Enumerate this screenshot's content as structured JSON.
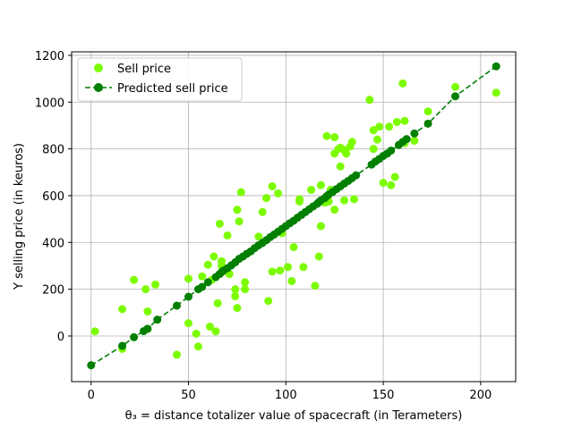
{
  "chart_data": {
    "type": "scatter",
    "xlabel": "θ₃ = distance totalizer value of spacecraft (in Terameters)",
    "ylabel": "Y selling price (in keuros)",
    "xlim": [
      -10,
      218
    ],
    "ylim": [
      -195,
      1215
    ],
    "xticks": [
      0,
      50,
      100,
      150,
      200
    ],
    "yticks": [
      0,
      200,
      400,
      600,
      800,
      1000,
      1200
    ],
    "grid": true,
    "legend_position": "top-left",
    "colors": {
      "sell": "#7cfc00",
      "predicted": "#007f00"
    },
    "series": [
      {
        "name": "Sell price",
        "style": "markers",
        "x": [
          2,
          16,
          16,
          22,
          28,
          29,
          29,
          33,
          44,
          50,
          50,
          54,
          55,
          57,
          60,
          61,
          62,
          63,
          64,
          65,
          66,
          67,
          67,
          68,
          70,
          71,
          74,
          74,
          75,
          75,
          76,
          77,
          79,
          79,
          86,
          88,
          90,
          91,
          93,
          93,
          96,
          97,
          98,
          101,
          103,
          104,
          107,
          107,
          109,
          113,
          115,
          117,
          118,
          118,
          120,
          121,
          122,
          123,
          125,
          125,
          125,
          127,
          128,
          128,
          130,
          130,
          131,
          133,
          134,
          135,
          143,
          145,
          145,
          147,
          148,
          150,
          153,
          154,
          156,
          157,
          160,
          161,
          161,
          166,
          173,
          187,
          208
        ],
        "y": [
          20,
          115,
          -55,
          240,
          200,
          105,
          30,
          220,
          -80,
          245,
          55,
          10,
          -45,
          255,
          305,
          40,
          240,
          340,
          20,
          140,
          480,
          320,
          300,
          280,
          430,
          265,
          200,
          170,
          120,
          540,
          490,
          615,
          230,
          200,
          425,
          530,
          590,
          150,
          640,
          275,
          610,
          280,
          440,
          295,
          235,
          380,
          585,
          575,
          295,
          625,
          215,
          340,
          470,
          645,
          570,
          855,
          575,
          625,
          850,
          780,
          540,
          800,
          805,
          725,
          580,
          795,
          780,
          810,
          830,
          585,
          1010,
          880,
          800,
          840,
          895,
          655,
          895,
          645,
          680,
          915,
          1080,
          825,
          920,
          835,
          960,
          1065,
          1040
        ]
      },
      {
        "name": "Predicted sell price",
        "style": "dashed-line-markers",
        "x": [
          0,
          16,
          22,
          27,
          29,
          34,
          44,
          50,
          55,
          57,
          60,
          64,
          66,
          67,
          68,
          70,
          72,
          74,
          76,
          78,
          80,
          82,
          84,
          86,
          88,
          90,
          92,
          94,
          96,
          98,
          100,
          102,
          104,
          106,
          108,
          110,
          112,
          114,
          116,
          117,
          118,
          120,
          121,
          122,
          124,
          126,
          128,
          130,
          132,
          134,
          136,
          144,
          146,
          148,
          150,
          152,
          154,
          158,
          160,
          162,
          166,
          173,
          187,
          208
        ],
        "y": [
          -125,
          -42,
          -5,
          21,
          31,
          70,
          130,
          168,
          200,
          210,
          230,
          252,
          265,
          273,
          280,
          290,
          302,
          315,
          330,
          340,
          352,
          362,
          376,
          388,
          398,
          410,
          423,
          434,
          446,
          458,
          470,
          482,
          493,
          506,
          518,
          530,
          542,
          554,
          565,
          573,
          580,
          590,
          598,
          605,
          616,
          628,
          640,
          652,
          663,
          675,
          687,
          733,
          746,
          757,
          770,
          780,
          793,
          817,
          830,
          842,
          866,
          908,
          1025,
          1153
        ]
      }
    ]
  }
}
